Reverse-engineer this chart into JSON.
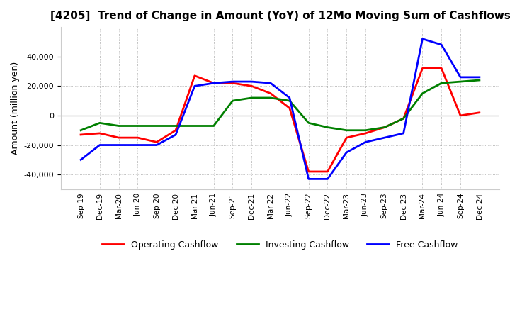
{
  "title": "[4205]  Trend of Change in Amount (YoY) of 12Mo Moving Sum of Cashflows",
  "ylabel": "Amount (million yen)",
  "ylim": [
    -50000,
    60000
  ],
  "yticks": [
    -40000,
    -20000,
    0,
    20000,
    40000
  ],
  "x_labels": [
    "Sep-19",
    "Dec-19",
    "Mar-20",
    "Jun-20",
    "Sep-20",
    "Dec-20",
    "Mar-21",
    "Jun-21",
    "Sep-21",
    "Dec-21",
    "Mar-22",
    "Jun-22",
    "Sep-22",
    "Dec-22",
    "Mar-23",
    "Jun-23",
    "Sep-23",
    "Dec-23",
    "Mar-24",
    "Jun-24",
    "Sep-24",
    "Dec-24"
  ],
  "operating": [
    -13000,
    -12000,
    -15000,
    -15000,
    -18000,
    -10000,
    27000,
    22000,
    22000,
    20000,
    15000,
    5000,
    -38000,
    -38000,
    -15000,
    -12000,
    -8000,
    -2000,
    32000,
    32000,
    0,
    2000
  ],
  "investing": [
    -10000,
    -5000,
    -7000,
    -7000,
    -7000,
    -7000,
    -7000,
    -7000,
    10000,
    12000,
    12000,
    10000,
    -5000,
    -8000,
    -10000,
    -10000,
    -8000,
    -2000,
    15000,
    22000,
    23000,
    24000
  ],
  "free": [
    -30000,
    -20000,
    -20000,
    -20000,
    -20000,
    -13000,
    20000,
    22000,
    23000,
    23000,
    22000,
    12000,
    -43000,
    -43000,
    -25000,
    -18000,
    -15000,
    -12000,
    52000,
    48000,
    26000,
    26000
  ],
  "operating_color": "#ff0000",
  "investing_color": "#008000",
  "free_color": "#0000ff",
  "grid_color": "#aaaaaa",
  "background_color": "#ffffff"
}
